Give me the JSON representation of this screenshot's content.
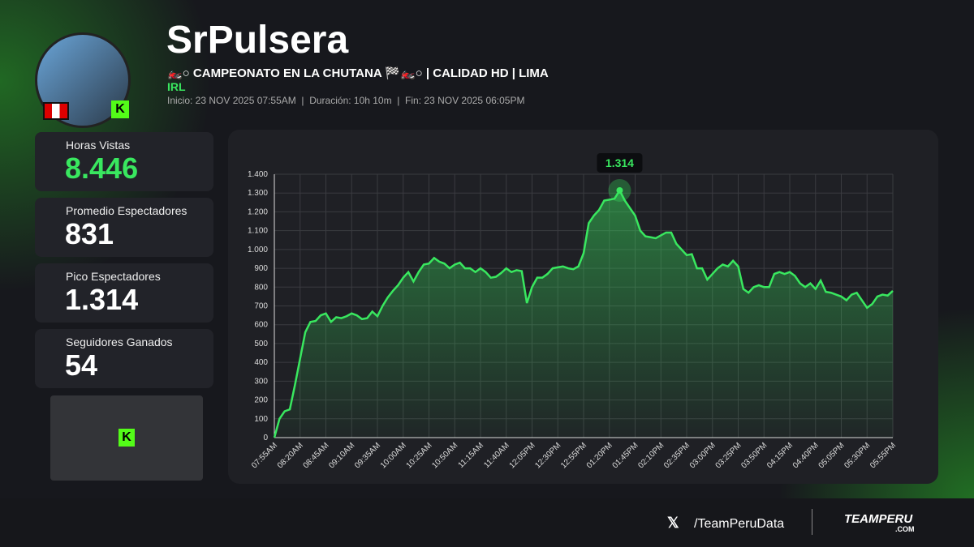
{
  "header": {
    "name": "SrPulsera",
    "title": "🏍️○ CAMPEONATO EN LA CHUTANA 🏁🏍️○ | CALIDAD HD | LIMA",
    "category": "IRL",
    "info": "Inicio: 23 NOV 2025 07:55AM  |  Duración: 10h 10m  |  Fin: 23 NOV 2025 06:05PM"
  },
  "stats": [
    {
      "label": "Horas Vistas",
      "value": "8.446"
    },
    {
      "label": "Promedio Espectadores",
      "value": "831"
    },
    {
      "label": "Pico Espectadores",
      "value": "1.314"
    },
    {
      "label": "Seguidores Ganados",
      "value": "54"
    }
  ],
  "footer": {
    "handle": "/TeamPeruData",
    "brand": "TEAMPERU",
    "domain": ".COM"
  },
  "chart_data": {
    "type": "line",
    "color": "#39e75f",
    "grid": true,
    "categories": [
      "07:55AM",
      null,
      null,
      null,
      null,
      "08:20AM",
      null,
      null,
      null,
      null,
      "08:45AM",
      null,
      null,
      null,
      null,
      "09:10AM",
      null,
      null,
      null,
      null,
      "09:35AM",
      null,
      null,
      null,
      null,
      "10:00AM",
      null,
      null,
      null,
      null,
      "10:25AM",
      null,
      null,
      null,
      null,
      "10:50AM",
      null,
      null,
      null,
      null,
      "11:15AM",
      null,
      null,
      null,
      null,
      "11:40AM",
      null,
      null,
      null,
      null,
      "12:05PM",
      null,
      null,
      null,
      null,
      "12:30PM",
      null,
      null,
      null,
      null,
      "12:55PM",
      null,
      null,
      null,
      null,
      "01:20PM",
      null,
      null,
      null,
      null,
      "01:45PM",
      null,
      null,
      null,
      null,
      "02:10PM",
      null,
      null,
      null,
      null,
      "02:35PM",
      null,
      null,
      null,
      null,
      "03:00PM",
      null,
      null,
      null,
      null,
      "03:25PM",
      null,
      null,
      null,
      null,
      "03:50PM",
      null,
      null,
      null,
      null,
      "04:15PM",
      null,
      null,
      null,
      null,
      "04:40PM",
      null,
      null,
      null,
      null,
      "05:05PM",
      null,
      null,
      null,
      null,
      "05:30PM",
      null,
      null,
      null,
      null,
      "05:55PM"
    ],
    "values": [
      0,
      100,
      140,
      150,
      280,
      420,
      560,
      615,
      620,
      650,
      660,
      615,
      640,
      635,
      645,
      660,
      650,
      630,
      635,
      670,
      645,
      700,
      745,
      780,
      810,
      850,
      880,
      830,
      880,
      920,
      925,
      955,
      935,
      925,
      900,
      920,
      930,
      900,
      900,
      880,
      900,
      880,
      850,
      855,
      875,
      900,
      880,
      890,
      885,
      715,
      800,
      850,
      850,
      870,
      900,
      905,
      910,
      900,
      895,
      910,
      980,
      1140,
      1180,
      1210,
      1260,
      1265,
      1270,
      1314,
      1260,
      1220,
      1180,
      1100,
      1070,
      1065,
      1060,
      1075,
      1090,
      1090,
      1030,
      1000,
      970,
      975,
      900,
      900,
      840,
      870,
      900,
      920,
      910,
      940,
      910,
      790,
      770,
      800,
      810,
      800,
      800,
      870,
      880,
      870,
      880,
      860,
      820,
      800,
      820,
      790,
      835,
      775,
      770,
      760,
      750,
      730,
      760,
      770,
      730,
      690,
      710,
      750,
      760,
      755,
      780
    ],
    "value_labels": [
      null,
      null,
      null,
      null,
      null,
      null,
      null,
      null,
      null,
      null,
      null,
      null,
      null,
      null,
      null,
      null,
      null,
      null,
      null,
      null,
      null,
      null,
      null,
      null,
      null,
      null,
      null,
      null,
      null,
      null,
      null,
      null,
      null,
      null,
      null,
      null,
      null,
      null,
      null,
      null,
      null,
      null,
      null,
      null,
      null,
      null,
      null,
      null,
      null,
      null,
      null,
      null,
      null,
      null,
      null,
      null,
      null,
      null,
      null,
      null,
      null,
      null,
      null,
      null,
      null,
      null,
      null,
      "1.314",
      null,
      null,
      null,
      null,
      null,
      null,
      null,
      null,
      null,
      null,
      null,
      null,
      null,
      null,
      null,
      null,
      null,
      null,
      null,
      null,
      null,
      null,
      null,
      null,
      null,
      null,
      null,
      null,
      null,
      null,
      null,
      null,
      null,
      null,
      null,
      null,
      null,
      null,
      null,
      null,
      null,
      null,
      null,
      null,
      null,
      null,
      null,
      null,
      null,
      null,
      null,
      null,
      null
    ],
    "ylim": [
      0,
      1400
    ],
    "yticks": [
      0,
      100,
      200,
      300,
      400,
      500,
      600,
      700,
      800,
      900,
      {
        "value": 1000,
        "label": "1.000"
      },
      {
        "value": 1100,
        "label": "1.100"
      },
      {
        "value": 1200,
        "label": "1.200"
      },
      {
        "value": 1300,
        "label": "1.300"
      },
      {
        "value": 1400,
        "label": "1.400"
      }
    ]
  }
}
